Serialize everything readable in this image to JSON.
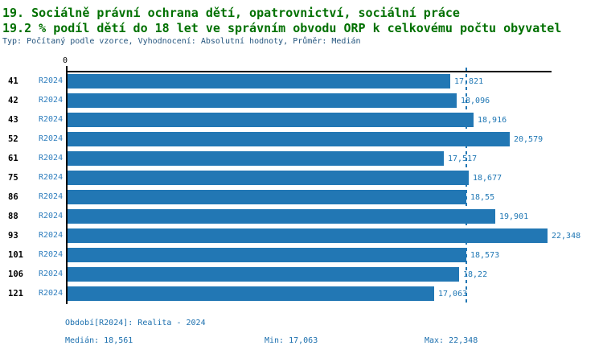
{
  "colors": {
    "title-green": "#007000",
    "meta-blue": "#24557e",
    "bar-blue": "#2277b4",
    "label-blue": "#1f77b4",
    "series-blue": "#2d7dbd",
    "footer-blue": "#1b6fae",
    "axis-black": "#000000"
  },
  "chart_data": {
    "type": "bar",
    "orientation": "horizontal",
    "title": "19. Sociálně právní ochrana dětí, opatrovnictví, sociální práce",
    "subtitle": "19.2 % podíl dětí do 18 let ve správním obvodu ORP k celkovému počtu obyvatel",
    "meta": "Typ: Počítaný podle vzorce, Vyhodnocení: Absolutní hodnoty, Průměr: Medián",
    "categories": [
      "41",
      "42",
      "43",
      "52",
      "61",
      "75",
      "86",
      "88",
      "93",
      "101",
      "106",
      "121"
    ],
    "series_label": "R2024",
    "values": [
      17.821,
      18.096,
      18.916,
      20.579,
      17.517,
      18.677,
      18.55,
      19.901,
      22.348,
      18.573,
      18.22,
      17.063
    ],
    "value_labels": [
      "17,821",
      "18,096",
      "18,916",
      "20,579",
      "17,517",
      "18,677",
      "18,55",
      "19,901",
      "22,348",
      "18,573",
      "18,22",
      "17,063"
    ],
    "xlabel": "",
    "ylabel": "",
    "xlim": [
      0,
      22.53
    ],
    "x_origin_label": "0",
    "median_value": 18.561,
    "grid": "none",
    "legend": "none",
    "footer": {
      "period": "Období[R2024]: Realita - 2024",
      "median": "Medián: 18,561",
      "min": "Min: 17,063",
      "max": "Max: 22,348"
    }
  }
}
